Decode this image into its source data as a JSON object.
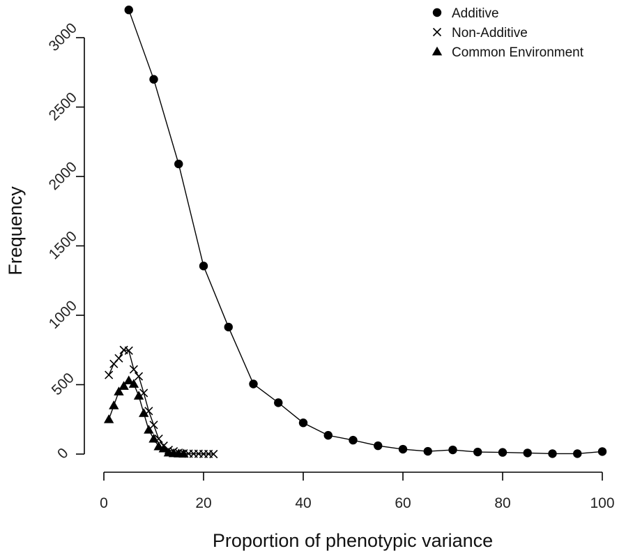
{
  "chart_data": {
    "type": "line",
    "xlabel": "Proportion of phenotypic variance",
    "ylabel": "Frequency",
    "xlim": [
      0,
      100
    ],
    "ylim": [
      -120,
      3200
    ],
    "xticks": [
      0,
      20,
      40,
      60,
      80,
      100
    ],
    "yticks": [
      0,
      500,
      1000,
      1500,
      2000,
      2500,
      3000
    ],
    "grid": false,
    "legend": "top-right",
    "series": [
      {
        "name": "Additive",
        "marker": "circle",
        "x": [
          5,
          10,
          15,
          20,
          25,
          30,
          35,
          40,
          45,
          50,
          55,
          60,
          65,
          70,
          75,
          80,
          85,
          90,
          95,
          100
        ],
        "y": [
          3200,
          2700,
          2090,
          1355,
          915,
          505,
          370,
          225,
          135,
          100,
          60,
          35,
          20,
          30,
          15,
          12,
          8,
          3,
          3,
          18
        ]
      },
      {
        "name": "Non-Additive",
        "marker": "cross",
        "x": [
          1,
          2,
          3,
          4,
          5,
          6,
          7,
          8,
          9,
          10,
          11,
          12,
          13,
          14,
          15,
          16,
          17,
          18,
          19,
          20,
          21,
          22
        ],
        "y": [
          570,
          650,
          690,
          750,
          745,
          610,
          560,
          440,
          310,
          210,
          110,
          60,
          30,
          20,
          10,
          5,
          3,
          2,
          2,
          1,
          1,
          0
        ]
      },
      {
        "name": "Common Environment",
        "marker": "triangle",
        "x": [
          1,
          2,
          3,
          4,
          5,
          6,
          7,
          8,
          9,
          10,
          11,
          12,
          13,
          14,
          15,
          16
        ],
        "y": [
          250,
          350,
          450,
          490,
          530,
          505,
          420,
          295,
          175,
          110,
          55,
          40,
          10,
          5,
          3,
          2
        ]
      }
    ]
  }
}
